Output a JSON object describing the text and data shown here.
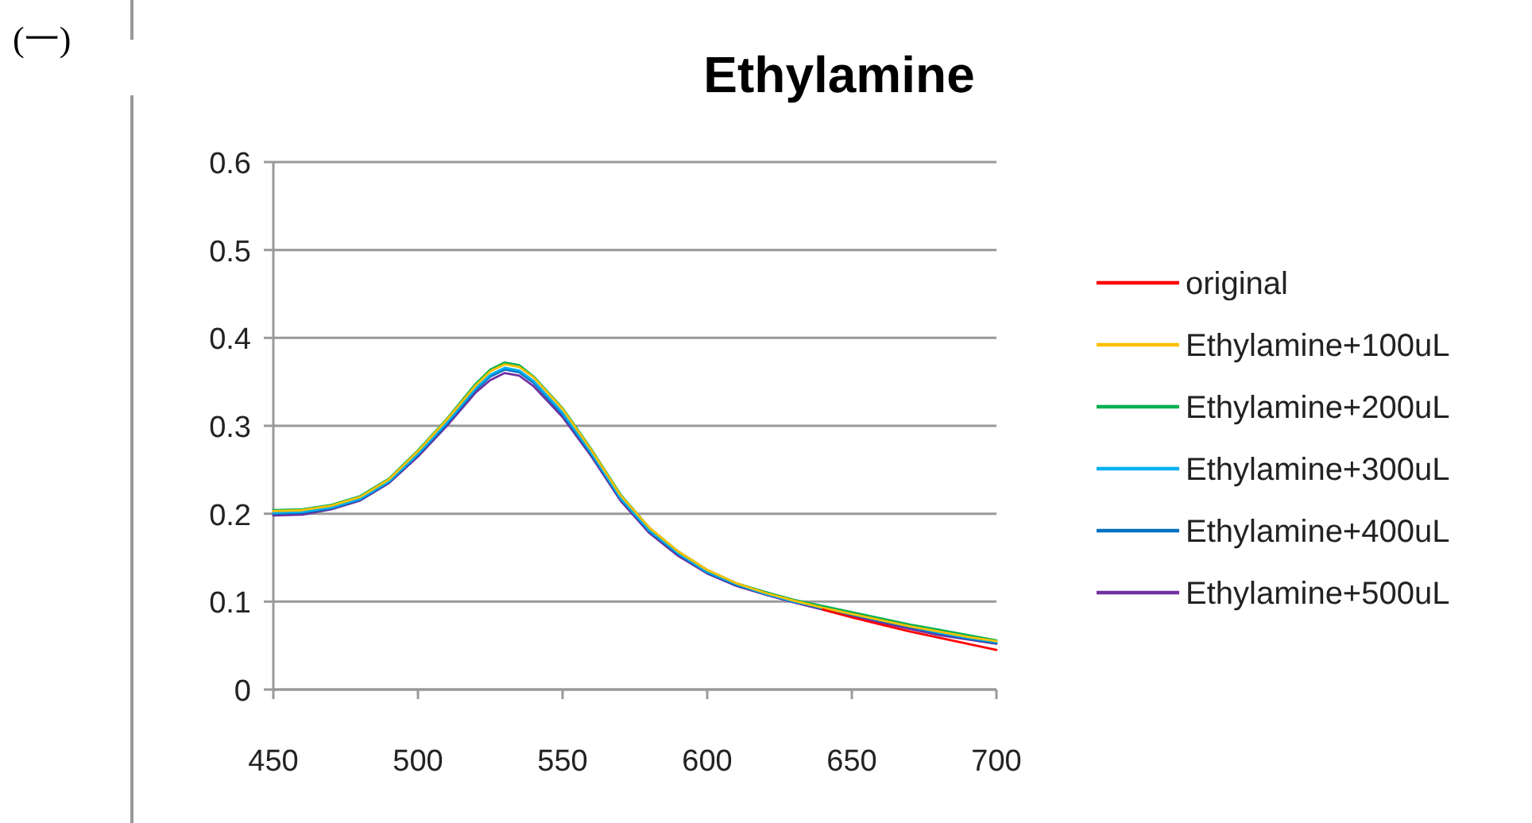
{
  "chart_data": {
    "type": "line",
    "title": "Ethylamine",
    "annotations": [
      "(一)"
    ],
    "x": [
      450,
      460,
      470,
      480,
      490,
      500,
      510,
      520,
      525,
      530,
      535,
      540,
      550,
      560,
      570,
      580,
      590,
      600,
      610,
      620,
      630,
      640,
      650,
      660,
      670,
      680,
      690,
      700
    ],
    "series": [
      {
        "name": "original",
        "color": "#ff0000",
        "values": [
          null,
          null,
          null,
          null,
          null,
          null,
          null,
          null,
          null,
          null,
          null,
          null,
          null,
          null,
          null,
          null,
          null,
          null,
          null,
          null,
          null,
          0.091,
          0.082,
          0.074,
          0.066,
          0.059,
          0.052,
          0.045
        ]
      },
      {
        "name": "Ethylamine+100uL",
        "color": "#ffc000",
        "values": [
          0.203,
          0.204,
          0.209,
          0.219,
          0.239,
          0.271,
          0.307,
          0.346,
          0.362,
          0.37,
          0.367,
          0.355,
          0.319,
          0.272,
          0.221,
          0.184,
          0.157,
          0.136,
          0.121,
          0.11,
          0.101,
          0.093,
          0.086,
          0.079,
          0.072,
          0.066,
          0.06,
          0.055
        ]
      },
      {
        "name": "Ethylamine+200uL",
        "color": "#00b050",
        "values": [
          0.204,
          0.205,
          0.21,
          0.22,
          0.24,
          0.272,
          0.308,
          0.348,
          0.364,
          0.372,
          0.369,
          0.356,
          0.32,
          0.273,
          0.222,
          0.184,
          0.157,
          0.136,
          0.121,
          0.111,
          0.102,
          0.095,
          0.088,
          0.081,
          0.074,
          0.068,
          0.062,
          0.056
        ]
      },
      {
        "name": "Ethylamine+300uL",
        "color": "#00b0f0",
        "values": [
          0.201,
          0.202,
          0.207,
          0.217,
          0.237,
          0.268,
          0.304,
          0.343,
          0.358,
          0.366,
          0.363,
          0.351,
          0.315,
          0.269,
          0.218,
          0.181,
          0.155,
          0.134,
          0.12,
          0.109,
          0.1,
          0.093,
          0.086,
          0.079,
          0.072,
          0.065,
          0.059,
          0.054
        ]
      },
      {
        "name": "Ethylamine+400uL",
        "color": "#0070c0",
        "values": [
          0.2,
          0.201,
          0.206,
          0.216,
          0.236,
          0.267,
          0.302,
          0.341,
          0.356,
          0.364,
          0.361,
          0.349,
          0.313,
          0.267,
          0.217,
          0.18,
          0.154,
          0.133,
          0.119,
          0.109,
          0.1,
          0.092,
          0.085,
          0.078,
          0.071,
          0.064,
          0.058,
          0.053
        ]
      },
      {
        "name": "Ethylamine+500uL",
        "color": "#7030a0",
        "values": [
          0.198,
          0.199,
          0.205,
          0.215,
          0.235,
          0.265,
          0.3,
          0.338,
          0.352,
          0.36,
          0.357,
          0.345,
          0.31,
          0.265,
          0.215,
          0.178,
          0.152,
          0.132,
          0.118,
          0.108,
          0.099,
          0.091,
          0.083,
          0.076,
          0.069,
          0.062,
          0.057,
          0.052
        ]
      }
    ],
    "xlim": [
      450,
      700
    ],
    "ylim": [
      0,
      0.6
    ],
    "xticks": [
      450,
      500,
      550,
      600,
      650,
      700
    ],
    "yticks": [
      0,
      0.1,
      0.2,
      0.3,
      0.4,
      0.5,
      0.6
    ],
    "grid": "y",
    "legend": "right"
  }
}
